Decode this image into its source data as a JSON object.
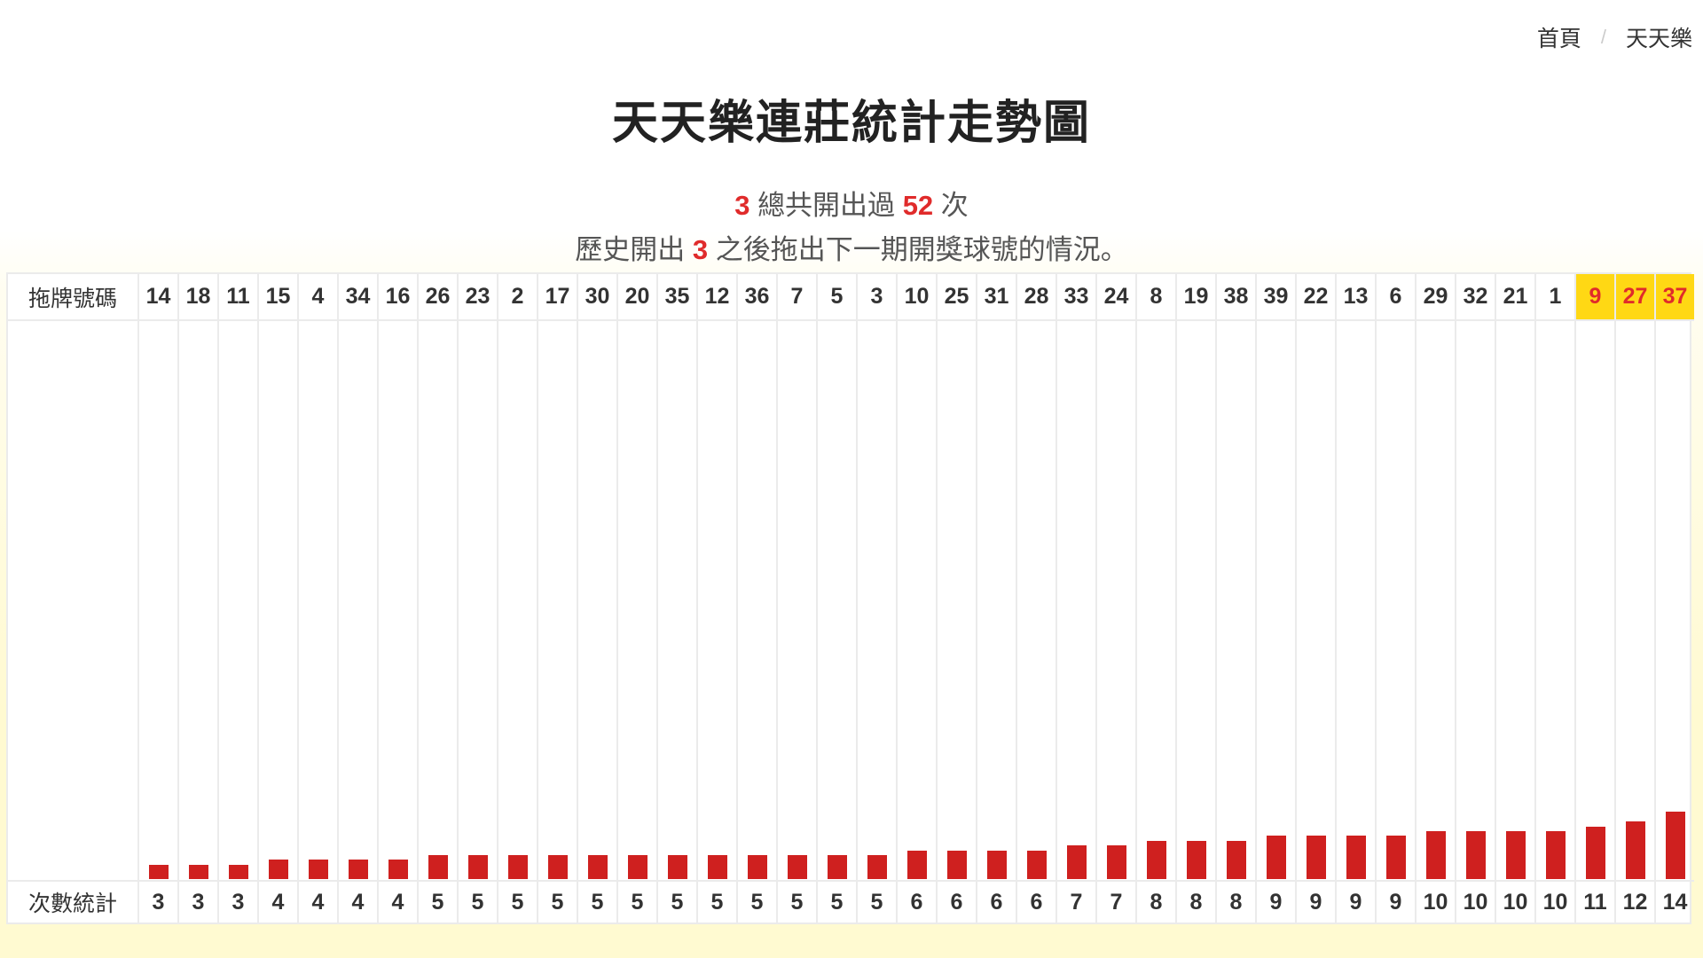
{
  "breadcrumb": {
    "home": "首頁",
    "separator": "/",
    "current": "天天樂"
  },
  "title": "天天樂連莊統計走勢圖",
  "summary": {
    "line1": {
      "number": "3",
      "text_a": "總共開出過",
      "count": "52",
      "text_b": "次"
    },
    "line2": {
      "text_a": "歷史開出",
      "number": "3",
      "text_b": "之後拖出下一期開獎球號的情況。"
    }
  },
  "table": {
    "row_label_numbers": "拖牌號碼",
    "row_label_counts": "次數統計",
    "highlight_color": "#ffd814",
    "bar_color": "#cf201f",
    "highlight_text_color": "#e02b2b"
  },
  "chart_data": {
    "type": "bar",
    "title": "天天樂連莊統計走勢圖",
    "xlabel": "拖牌號碼",
    "ylabel": "次數統計",
    "categories": [
      "14",
      "18",
      "11",
      "15",
      "4",
      "34",
      "16",
      "26",
      "23",
      "2",
      "17",
      "30",
      "20",
      "35",
      "12",
      "36",
      "7",
      "5",
      "3",
      "10",
      "25",
      "31",
      "28",
      "33",
      "24",
      "8",
      "19",
      "38",
      "39",
      "22",
      "13",
      "6",
      "29",
      "32",
      "21",
      "1",
      "9",
      "27",
      "37"
    ],
    "values": [
      3,
      3,
      3,
      4,
      4,
      4,
      4,
      5,
      5,
      5,
      5,
      5,
      5,
      5,
      5,
      5,
      5,
      5,
      5,
      6,
      6,
      6,
      6,
      7,
      7,
      8,
      8,
      8,
      9,
      9,
      9,
      9,
      10,
      10,
      10,
      10,
      11,
      12,
      14
    ],
    "highlighted": [
      "9",
      "27",
      "37"
    ],
    "grid": true,
    "legend": "none"
  }
}
